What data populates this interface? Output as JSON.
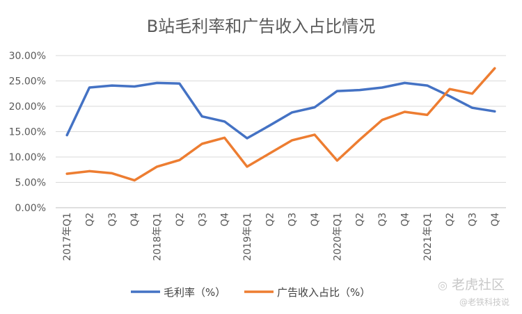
{
  "chart_data": {
    "type": "line",
    "title": "B站毛利率和广告收入占比情况",
    "categories": [
      "2017年Q1",
      "Q2",
      "Q3",
      "Q4",
      "2018年Q1",
      "Q2",
      "Q3",
      "Q4",
      "2019年Q1",
      "Q2",
      "Q3",
      "Q4",
      "2020年Q1",
      "Q2",
      "Q3",
      "Q4",
      "2021年Q1",
      "Q2",
      "Q3",
      "Q4"
    ],
    "yticks": [
      "0.00%",
      "5.00%",
      "10.00%",
      "15.00%",
      "20.00%",
      "25.00%",
      "30.00%"
    ],
    "ylim": [
      0,
      30
    ],
    "grid": true,
    "legend_position": "bottom",
    "series": [
      {
        "name": "毛利率（%）",
        "color": "#4472c4",
        "values": [
          14.3,
          23.7,
          24.1,
          23.9,
          24.6,
          24.5,
          18.0,
          17.0,
          13.7,
          16.2,
          18.8,
          19.8,
          23.0,
          23.2,
          23.7,
          24.6,
          24.1,
          22.0,
          19.7,
          19.0
        ]
      },
      {
        "name": "广告收入占比（%）",
        "color": "#ed7d31",
        "values": [
          6.7,
          7.2,
          6.8,
          5.4,
          8.1,
          9.4,
          12.6,
          13.8,
          8.1,
          10.7,
          13.3,
          14.4,
          9.3,
          13.4,
          17.3,
          18.9,
          18.3,
          23.4,
          22.5,
          27.5
        ]
      }
    ]
  },
  "watermark": {
    "brand": "老虎社区",
    "handle": "@老铁科技说"
  }
}
